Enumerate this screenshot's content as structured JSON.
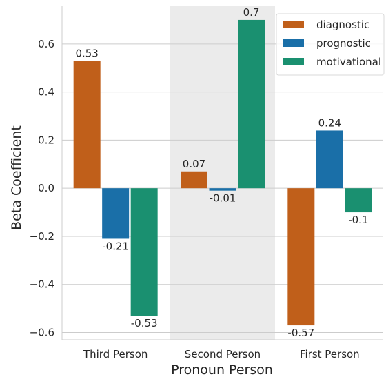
{
  "chart_data": {
    "type": "bar",
    "categories": [
      "Third Person",
      "Second Person",
      "First Person"
    ],
    "series": [
      {
        "name": "diagnostic",
        "color": "#c05f1a",
        "values": [
          0.53,
          0.07,
          -0.57
        ]
      },
      {
        "name": "prognostic",
        "color": "#1a6fa8",
        "values": [
          -0.21,
          -0.01,
          0.24
        ]
      },
      {
        "name": "motivational",
        "color": "#1a9070",
        "values": [
          -0.53,
          0.7,
          -0.1
        ]
      }
    ],
    "data_labels": [
      [
        "0.53",
        "0.07",
        "-0.57"
      ],
      [
        "-0.21",
        "-0.01",
        "0.24"
      ],
      [
        "-0.53",
        "0.7",
        "-0.1"
      ]
    ],
    "xlabel": "Pronoun Person",
    "ylabel": "Beta Coefficient",
    "ylim": [
      -0.63,
      0.76
    ],
    "yticks": [
      {
        "value": -0.6,
        "label": "−0.6"
      },
      {
        "value": -0.4,
        "label": "−0.4"
      },
      {
        "value": -0.2,
        "label": "−0.2"
      },
      {
        "value": 0.0,
        "label": "0.0"
      },
      {
        "value": 0.2,
        "label": "0.2"
      },
      {
        "value": 0.4,
        "label": "0.4"
      },
      {
        "value": 0.6,
        "label": "0.6"
      }
    ],
    "grid": true,
    "highlighted_category": "Second Person",
    "highlight_color": "#ebebeb",
    "legend_position": "top-right"
  }
}
